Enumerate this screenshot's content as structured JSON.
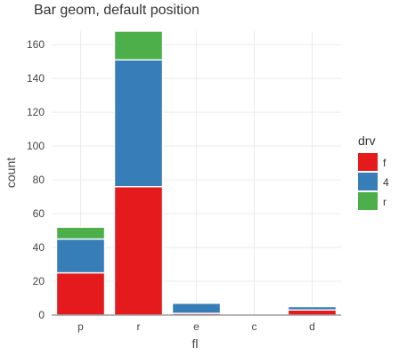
{
  "chart_data": {
    "type": "bar",
    "stacked": true,
    "title": "Bar geom, default position",
    "xlabel": "fl",
    "ylabel": "count",
    "categories": [
      "p",
      "r",
      "e",
      "c",
      "d"
    ],
    "series": [
      {
        "name": "f",
        "color": "#e41a1c",
        "values": [
          25,
          76,
          1,
          0,
          3
        ]
      },
      {
        "name": "4",
        "color": "#377eb8",
        "values": [
          20,
          75,
          6,
          0,
          2
        ]
      },
      {
        "name": "r",
        "color": "#4daf4a",
        "values": [
          7,
          17,
          0,
          0,
          0
        ]
      }
    ],
    "ylim": [
      0,
      168
    ],
    "yticks": [
      0,
      20,
      40,
      60,
      80,
      100,
      120,
      140,
      160
    ],
    "grid": true,
    "legend": {
      "title": "drv",
      "position": "right"
    }
  }
}
